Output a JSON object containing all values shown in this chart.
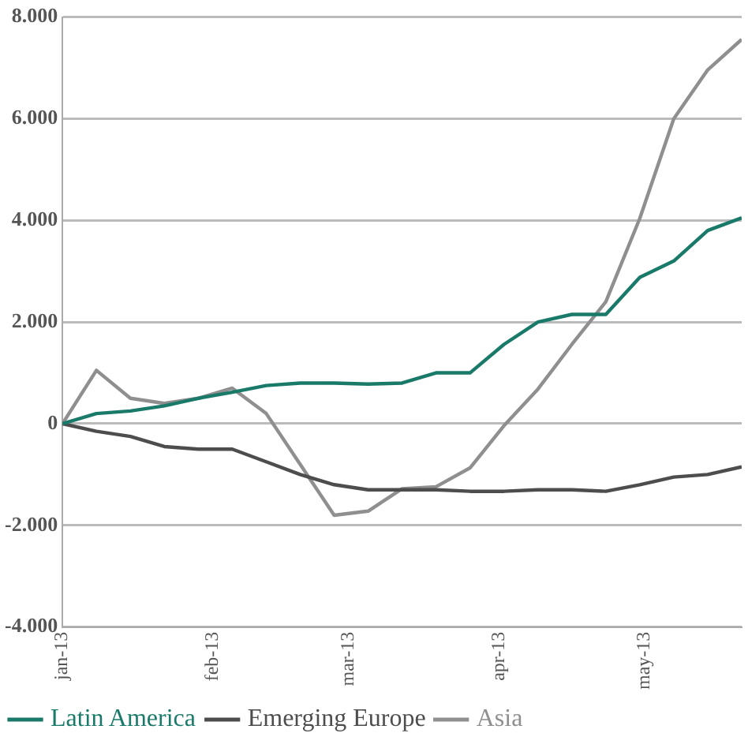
{
  "chart_data": {
    "type": "line",
    "x": [
      "2013-01-01",
      "2013-01-08",
      "2013-01-15",
      "2013-01-22",
      "2013-01-29",
      "2013-02-05",
      "2013-02-12",
      "2013-02-19",
      "2013-02-26",
      "2013-03-05",
      "2013-03-12",
      "2013-03-19",
      "2013-03-26",
      "2013-04-02",
      "2013-04-09",
      "2013-04-16",
      "2013-04-23",
      "2013-04-30",
      "2013-05-07",
      "2013-05-14",
      "2013-05-21"
    ],
    "series": [
      {
        "name": "Latin America",
        "color": "#1a7a6a",
        "values": [
          0,
          200,
          250,
          350,
          500,
          620,
          750,
          800,
          800,
          780,
          800,
          1000,
          1000,
          1560,
          2000,
          2150,
          2150,
          2880,
          3200,
          3800,
          4050
        ]
      },
      {
        "name": "Emerging Europe",
        "color": "#4d4d4d",
        "values": [
          0,
          -150,
          -250,
          -450,
          -500,
          -500,
          -750,
          -1000,
          -1200,
          -1300,
          -1300,
          -1300,
          -1330,
          -1330,
          -1300,
          -1300,
          -1330,
          -1200,
          -1050,
          -1000,
          -850
        ]
      },
      {
        "name": "Asia",
        "color": "#8f8f8f",
        "values": [
          0,
          1050,
          500,
          400,
          500,
          700,
          200,
          -800,
          -1800,
          -1720,
          -1280,
          -1240,
          -870,
          -40,
          680,
          1560,
          2400,
          4040,
          6000,
          6960,
          7560
        ]
      }
    ],
    "xlim": [
      "2013-01-01",
      "2013-05-21"
    ],
    "xticks": [
      {
        "value": "2013-01-01",
        "label": "jan-13"
      },
      {
        "value": "2013-02-01",
        "label": "feb-13"
      },
      {
        "value": "2013-03-01",
        "label": "mar-13"
      },
      {
        "value": "2013-04-01",
        "label": "apr-13"
      },
      {
        "value": "2013-05-01",
        "label": "may-13"
      }
    ],
    "ylim": [
      -4000,
      8000
    ],
    "yticks": [
      {
        "value": -4000,
        "label": "-4.000"
      },
      {
        "value": -2000,
        "label": "-2.000"
      },
      0,
      {
        "value": 2000,
        "label": "2.000"
      },
      {
        "value": 4000,
        "label": "4.000"
      },
      {
        "value": 6000,
        "label": "6.000"
      },
      {
        "value": 8000,
        "label": "8.000"
      }
    ],
    "grid": "y",
    "legend": "bottom left",
    "marker": "none",
    "line_style": "solid"
  }
}
